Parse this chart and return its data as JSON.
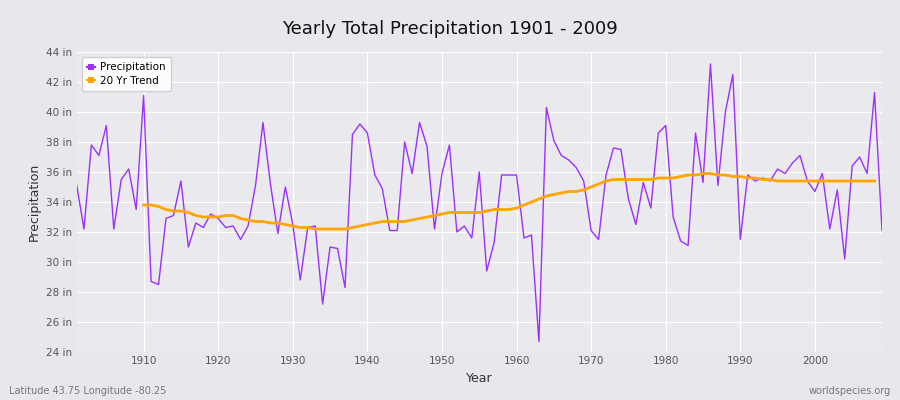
{
  "title": "Yearly Total Precipitation 1901 - 2009",
  "xlabel": "Year",
  "ylabel": "Precipitation",
  "bottom_left_label": "Latitude 43.75 Longitude -80.25",
  "bottom_right_label": "worldspecies.org",
  "precip_color": "#9B30FF",
  "trend_color": "#FFA500",
  "fig_facecolor": "#E8E8EC",
  "plot_facecolor": "#EAEAEE",
  "ylim": [
    24,
    44
  ],
  "ytick_labels": [
    "24 in",
    "26 in",
    "28 in",
    "30 in",
    "32 in",
    "34 in",
    "36 in",
    "38 in",
    "40 in",
    "42 in",
    "44 in"
  ],
  "ytick_values": [
    24,
    26,
    28,
    30,
    32,
    34,
    36,
    38,
    40,
    42,
    44
  ],
  "years": [
    1901,
    1902,
    1903,
    1904,
    1905,
    1906,
    1907,
    1908,
    1909,
    1910,
    1911,
    1912,
    1913,
    1914,
    1915,
    1916,
    1917,
    1918,
    1919,
    1920,
    1921,
    1922,
    1923,
    1924,
    1925,
    1926,
    1927,
    1928,
    1929,
    1930,
    1931,
    1932,
    1933,
    1934,
    1935,
    1936,
    1937,
    1938,
    1939,
    1940,
    1941,
    1942,
    1943,
    1944,
    1945,
    1946,
    1947,
    1948,
    1949,
    1950,
    1951,
    1952,
    1953,
    1954,
    1955,
    1956,
    1957,
    1958,
    1959,
    1960,
    1961,
    1962,
    1963,
    1964,
    1965,
    1966,
    1967,
    1968,
    1969,
    1970,
    1971,
    1972,
    1973,
    1974,
    1975,
    1976,
    1977,
    1978,
    1979,
    1980,
    1981,
    1982,
    1983,
    1984,
    1985,
    1986,
    1987,
    1988,
    1989,
    1990,
    1991,
    1992,
    1993,
    1994,
    1995,
    1996,
    1997,
    1998,
    1999,
    2000,
    2001,
    2002,
    2003,
    2004,
    2005,
    2006,
    2007,
    2008,
    2009
  ],
  "precip": [
    35.2,
    32.2,
    37.8,
    37.1,
    39.1,
    32.2,
    35.5,
    36.2,
    33.5,
    41.1,
    28.7,
    28.5,
    32.9,
    33.1,
    35.4,
    31.0,
    32.6,
    32.3,
    33.2,
    32.9,
    32.3,
    32.4,
    31.5,
    32.4,
    35.1,
    39.3,
    35.2,
    31.9,
    35.0,
    32.5,
    28.8,
    32.3,
    32.4,
    27.2,
    31.0,
    30.9,
    28.3,
    38.5,
    39.2,
    38.6,
    35.8,
    34.9,
    32.1,
    32.1,
    38.0,
    35.9,
    39.3,
    37.7,
    32.2,
    35.9,
    37.8,
    32.0,
    32.4,
    31.6,
    36.0,
    29.4,
    31.3,
    35.8,
    35.8,
    35.8,
    31.6,
    31.8,
    24.7,
    40.3,
    38.1,
    37.1,
    36.8,
    36.3,
    35.4,
    32.1,
    31.5,
    35.8,
    37.6,
    37.5,
    34.2,
    32.5,
    35.3,
    33.6,
    38.6,
    39.1,
    33.0,
    31.4,
    31.1,
    38.6,
    35.3,
    43.2,
    35.1,
    40.0,
    42.5,
    31.5,
    35.8,
    35.4,
    35.6,
    35.4,
    36.2,
    35.9,
    36.6,
    37.1,
    35.4,
    34.7,
    35.9,
    32.2,
    34.8,
    30.2,
    36.4,
    37.0,
    35.9,
    41.3,
    32.1
  ],
  "trend": [
    null,
    null,
    null,
    null,
    null,
    null,
    null,
    null,
    null,
    33.8,
    33.8,
    33.7,
    33.5,
    33.4,
    33.4,
    33.3,
    33.1,
    33.0,
    33.0,
    33.0,
    33.1,
    33.1,
    32.9,
    32.8,
    32.7,
    32.7,
    32.6,
    32.6,
    32.5,
    32.4,
    32.3,
    32.3,
    32.2,
    32.2,
    32.2,
    32.2,
    32.2,
    32.3,
    32.4,
    32.5,
    32.6,
    32.7,
    32.7,
    32.7,
    32.7,
    32.8,
    32.9,
    33.0,
    33.1,
    33.2,
    33.3,
    33.3,
    33.3,
    33.3,
    33.3,
    33.4,
    33.5,
    33.5,
    33.5,
    33.6,
    33.8,
    34.0,
    34.2,
    34.4,
    34.5,
    34.6,
    34.7,
    34.7,
    34.8,
    35.0,
    35.2,
    35.4,
    35.5,
    35.5,
    35.5,
    35.5,
    35.5,
    35.5,
    35.6,
    35.6,
    35.6,
    35.7,
    35.8,
    35.8,
    35.9,
    35.9,
    35.8,
    35.8,
    35.7,
    35.7,
    35.6,
    35.6,
    35.5,
    35.5,
    35.4,
    35.4,
    35.4,
    35.4,
    35.4,
    35.4,
    35.4,
    35.4,
    35.4,
    35.4,
    35.4,
    35.4,
    35.4,
    35.4
  ]
}
